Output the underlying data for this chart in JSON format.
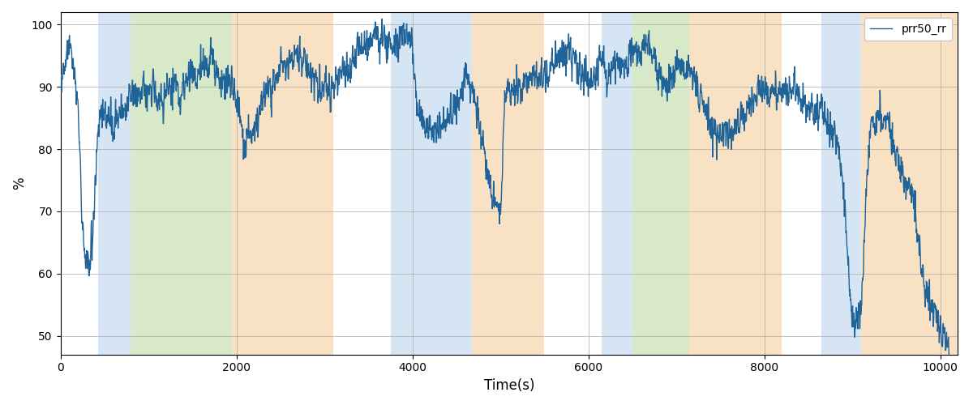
{
  "xlabel": "Time(s)",
  "ylabel": "%",
  "line_color": "#1f6399",
  "line_label": "prr50_rr",
  "line_width": 1.0,
  "xlim": [
    0,
    10200
  ],
  "ylim": [
    47,
    102
  ],
  "yticks": [
    50,
    60,
    70,
    80,
    90,
    100
  ],
  "xticks": [
    0,
    2000,
    4000,
    6000,
    8000,
    10000
  ],
  "background_color": "#ffffff",
  "colored_bands": [
    {
      "xmin": 430,
      "xmax": 800,
      "color": "#aecde8",
      "alpha": 0.5
    },
    {
      "xmin": 800,
      "xmax": 1950,
      "color": "#9dc87a",
      "alpha": 0.4
    },
    {
      "xmin": 1950,
      "xmax": 3100,
      "color": "#f5c48a",
      "alpha": 0.5
    },
    {
      "xmin": 3750,
      "xmax": 4680,
      "color": "#aecde8",
      "alpha": 0.5
    },
    {
      "xmin": 4680,
      "xmax": 5500,
      "color": "#f5c48a",
      "alpha": 0.5
    },
    {
      "xmin": 6150,
      "xmax": 6500,
      "color": "#aecde8",
      "alpha": 0.5
    },
    {
      "xmin": 6500,
      "xmax": 7150,
      "color": "#9dc87a",
      "alpha": 0.4
    },
    {
      "xmin": 7150,
      "xmax": 8200,
      "color": "#f5c48a",
      "alpha": 0.5
    },
    {
      "xmin": 8650,
      "xmax": 9100,
      "color": "#aecde8",
      "alpha": 0.5
    },
    {
      "xmin": 9100,
      "xmax": 10200,
      "color": "#f5c48a",
      "alpha": 0.5
    }
  ],
  "seed": 42
}
